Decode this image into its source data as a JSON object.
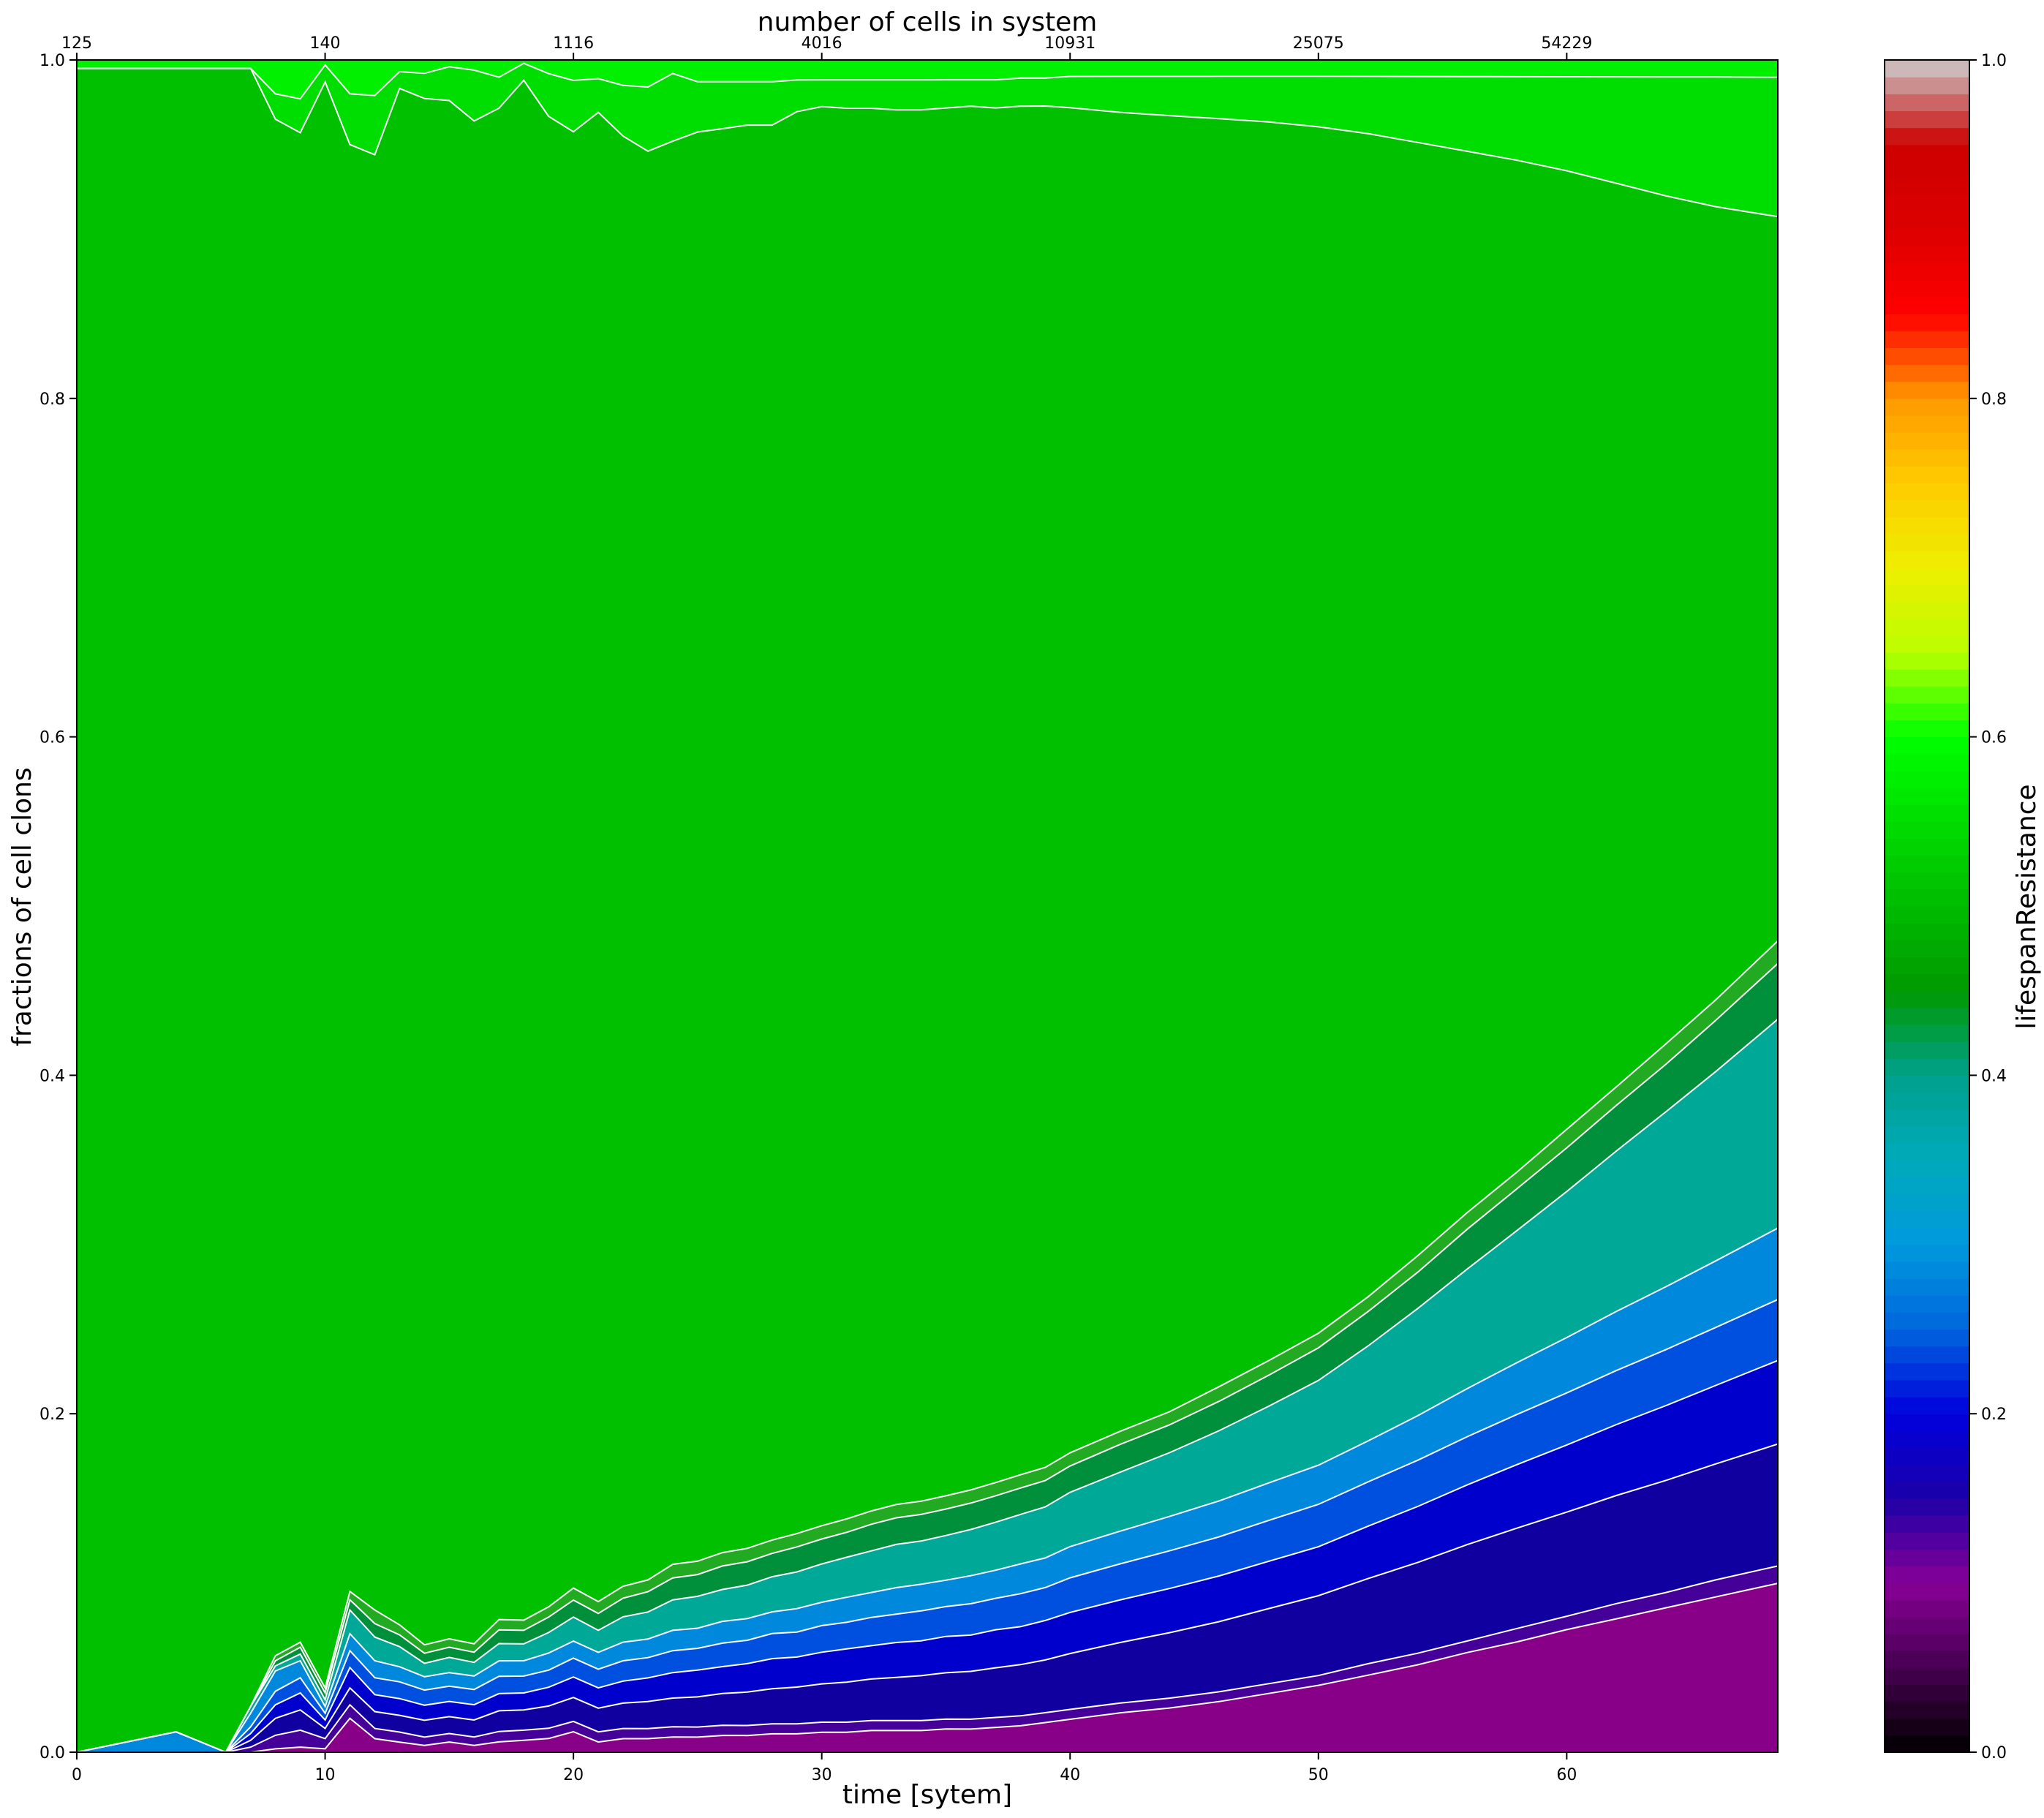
{
  "chart_data": [
    {
      "type": "area",
      "stacked": true,
      "normalized": true,
      "title": "",
      "xlabel": "time [sytem]",
      "ylabel": "fractions of cell clons",
      "xlim": [
        0,
        68.5
      ],
      "ylim": [
        0,
        1
      ],
      "x_ticks": [
        0,
        10,
        20,
        30,
        40,
        50,
        60
      ],
      "y_ticks": [
        0.0,
        0.2,
        0.4,
        0.6,
        0.8,
        1.0
      ],
      "y_tick_labels": [
        "0.0",
        "0.2",
        "0.4",
        "0.6",
        "0.8",
        "1.0"
      ],
      "top_axis": {
        "label": "number of cells in system",
        "ticks": [
          0,
          10,
          20,
          30,
          40,
          50,
          60
        ],
        "tick_labels": [
          "125",
          "140",
          "1116",
          "4016",
          "10931",
          "25075",
          "54229"
        ]
      },
      "grid": false,
      "boundary_line_color": "#ffffff",
      "x": [
        0,
        4,
        6,
        7,
        8,
        9,
        10,
        11,
        12,
        13,
        14,
        15,
        16,
        17,
        18,
        19,
        20,
        21,
        22,
        23,
        24,
        25,
        26,
        27,
        28,
        29,
        30,
        31,
        32,
        33,
        34,
        35,
        36,
        37,
        38,
        39,
        40,
        42,
        44,
        46,
        48,
        50,
        52,
        54,
        56,
        58,
        60,
        62,
        64,
        66,
        68.5
      ],
      "series": [
        {
          "color": "#880088",
          "values": [
            0,
            0,
            0,
            0,
            0.002,
            0.003,
            0.002,
            0.02,
            0.008,
            0.006,
            0.004,
            0.006,
            0.004,
            0.006,
            0.007,
            0.008,
            0.012,
            0.006,
            0.008,
            0.008,
            0.009,
            0.009,
            0.01,
            0.01,
            0.011,
            0.011,
            0.012,
            0.012,
            0.013,
            0.013,
            0.013,
            0.014,
            0.014,
            0.015,
            0.016,
            0.018,
            0.02,
            0.024,
            0.027,
            0.031,
            0.036,
            0.041,
            0.047,
            0.053,
            0.06,
            0.066,
            0.073,
            0.079,
            0.085,
            0.091,
            0.097
          ]
        },
        {
          "color": "#440099",
          "values": [
            0,
            0,
            0,
            0.003,
            0.008,
            0.01,
            0.006,
            0.008,
            0.006,
            0.006,
            0.005,
            0.005,
            0.005,
            0.006,
            0.006,
            0.006,
            0.006,
            0.006,
            0.006,
            0.006,
            0.006,
            0.006,
            0.006,
            0.006,
            0.006,
            0.006,
            0.006,
            0.006,
            0.006,
            0.006,
            0.006,
            0.006,
            0.006,
            0.006,
            0.006,
            0.006,
            0.006,
            0.006,
            0.006,
            0.006,
            0.006,
            0.006,
            0.007,
            0.007,
            0.007,
            0.008,
            0.008,
            0.009,
            0.009,
            0.01,
            0.01
          ]
        },
        {
          "color": "#1100a0",
          "values": [
            0,
            0,
            0,
            0.004,
            0.01,
            0.012,
            0.006,
            0.01,
            0.01,
            0.01,
            0.01,
            0.01,
            0.01,
            0.012,
            0.012,
            0.013,
            0.014,
            0.014,
            0.015,
            0.016,
            0.017,
            0.018,
            0.019,
            0.02,
            0.021,
            0.022,
            0.023,
            0.024,
            0.025,
            0.026,
            0.027,
            0.028,
            0.029,
            0.03,
            0.031,
            0.032,
            0.034,
            0.037,
            0.04,
            0.043,
            0.046,
            0.049,
            0.052,
            0.055,
            0.058,
            0.06,
            0.062,
            0.064,
            0.066,
            0.068,
            0.07
          ]
        },
        {
          "color": "#0000cc",
          "values": [
            0,
            0,
            0,
            0.004,
            0.008,
            0.01,
            0.005,
            0.012,
            0.01,
            0.01,
            0.009,
            0.009,
            0.009,
            0.01,
            0.01,
            0.011,
            0.012,
            0.012,
            0.013,
            0.014,
            0.015,
            0.016,
            0.016,
            0.017,
            0.018,
            0.018,
            0.019,
            0.02,
            0.02,
            0.021,
            0.021,
            0.022,
            0.022,
            0.023,
            0.023,
            0.024,
            0.025,
            0.026,
            0.027,
            0.028,
            0.029,
            0.03,
            0.032,
            0.034,
            0.036,
            0.038,
            0.04,
            0.042,
            0.044,
            0.046,
            0.048
          ]
        },
        {
          "color": "#0050e0",
          "values": [
            0,
            0,
            0,
            0.004,
            0.008,
            0.009,
            0.004,
            0.01,
            0.01,
            0.01,
            0.009,
            0.009,
            0.009,
            0.01,
            0.01,
            0.01,
            0.011,
            0.011,
            0.012,
            0.012,
            0.013,
            0.013,
            0.014,
            0.014,
            0.015,
            0.015,
            0.016,
            0.016,
            0.017,
            0.017,
            0.018,
            0.018,
            0.019,
            0.019,
            0.02,
            0.02,
            0.021,
            0.022,
            0.023,
            0.024,
            0.025,
            0.026,
            0.027,
            0.028,
            0.029,
            0.03,
            0.031,
            0.032,
            0.033,
            0.034,
            0.035
          ]
        },
        {
          "color": "#0088dd",
          "values": [
            0,
            0.012,
            0,
            0.008,
            0.012,
            0.01,
            0.004,
            0.01,
            0.01,
            0.009,
            0.008,
            0.008,
            0.008,
            0.009,
            0.009,
            0.01,
            0.01,
            0.01,
            0.011,
            0.011,
            0.012,
            0.012,
            0.013,
            0.013,
            0.013,
            0.014,
            0.014,
            0.015,
            0.015,
            0.016,
            0.016,
            0.016,
            0.017,
            0.017,
            0.018,
            0.018,
            0.019,
            0.02,
            0.021,
            0.022,
            0.023,
            0.024,
            0.025,
            0.027,
            0.029,
            0.031,
            0.033,
            0.035,
            0.037,
            0.039,
            0.041
          ]
        },
        {
          "color": "#00a898",
          "values": [
            0,
            0,
            0,
            0.004,
            0.003,
            0.004,
            0.004,
            0.014,
            0.014,
            0.012,
            0.008,
            0.009,
            0.008,
            0.01,
            0.01,
            0.012,
            0.014,
            0.013,
            0.015,
            0.016,
            0.018,
            0.019,
            0.019,
            0.02,
            0.021,
            0.022,
            0.023,
            0.024,
            0.025,
            0.026,
            0.026,
            0.027,
            0.028,
            0.029,
            0.03,
            0.031,
            0.033,
            0.036,
            0.039,
            0.043,
            0.047,
            0.052,
            0.058,
            0.065,
            0.072,
            0.079,
            0.087,
            0.095,
            0.103,
            0.111,
            0.12
          ]
        },
        {
          "color": "#008f3a",
          "values": [
            0,
            0,
            0,
            0,
            0.003,
            0.004,
            0.004,
            0.006,
            0.008,
            0.007,
            0.006,
            0.006,
            0.006,
            0.008,
            0.008,
            0.009,
            0.01,
            0.01,
            0.011,
            0.012,
            0.013,
            0.013,
            0.014,
            0.014,
            0.014,
            0.015,
            0.015,
            0.015,
            0.016,
            0.016,
            0.016,
            0.016,
            0.016,
            0.016,
            0.016,
            0.016,
            0.016,
            0.017,
            0.017,
            0.018,
            0.019,
            0.02,
            0.021,
            0.022,
            0.024,
            0.025,
            0.026,
            0.027,
            0.028,
            0.03,
            0.032
          ]
        },
        {
          "color": "#22aa22",
          "values": [
            0,
            0,
            0,
            0,
            0.003,
            0.003,
            0.003,
            0.005,
            0.008,
            0.006,
            0.005,
            0.005,
            0.005,
            0.006,
            0.006,
            0.006,
            0.007,
            0.007,
            0.007,
            0.007,
            0.008,
            0.008,
            0.008,
            0.008,
            0.008,
            0.008,
            0.008,
            0.008,
            0.008,
            0.008,
            0.008,
            0.008,
            0.008,
            0.008,
            0.008,
            0.008,
            0.008,
            0.008,
            0.008,
            0.009,
            0.009,
            0.009,
            0.009,
            0.01,
            0.01,
            0.01,
            0.011,
            0.011,
            0.012,
            0.012,
            0.013
          ]
        },
        {
          "color": "#00c000",
          "values": [
            0.995,
            0.983,
            0.995,
            0.968,
            0.908,
            0.892,
            0.949,
            0.855,
            0.86,
            0.917,
            0.922,
            0.909,
            0.899,
            0.877,
            0.91,
            0.872,
            0.852,
            0.88,
            0.857,
            0.846,
            0.841,
            0.853,
            0.849,
            0.852,
            0.847,
            0.852,
            0.852,
            0.847,
            0.843,
            0.839,
            0.837,
            0.839,
            0.839,
            0.831,
            0.829,
            0.827,
            0.818,
            0.806,
            0.792,
            0.777,
            0.759,
            0.74,
            0.71,
            0.675,
            0.639,
            0.605,
            0.571,
            0.535,
            0.499,
            0.465,
            0.416
          ]
        },
        {
          "color": "#00dd00",
          "values": [
            0,
            0,
            0,
            0,
            0.015,
            0.02,
            0.01,
            0.03,
            0.035,
            0.01,
            0.015,
            0.02,
            0.03,
            0.018,
            0.01,
            0.025,
            0.03,
            0.02,
            0.03,
            0.038,
            0.04,
            0.03,
            0.028,
            0.026,
            0.026,
            0.019,
            0.016,
            0.017,
            0.017,
            0.018,
            0.018,
            0.017,
            0.016,
            0.017,
            0.017,
            0.017,
            0.019,
            0.022,
            0.024,
            0.026,
            0.028,
            0.031,
            0.035,
            0.04,
            0.045,
            0.05,
            0.056,
            0.063,
            0.07,
            0.076,
            0.08
          ]
        },
        {
          "color": "#00f000",
          "values": [
            0.005,
            0.005,
            0.005,
            0.005,
            0.02,
            0.023,
            0.003,
            0.02,
            0.021,
            0.007,
            0.008,
            0.004,
            0.006,
            0.01,
            0.002,
            0.008,
            0.012,
            0.011,
            0.015,
            0.016,
            0.008,
            0.013,
            0.013,
            0.013,
            0.013,
            0.012,
            0.012,
            0.012,
            0.012,
            0.012,
            0.012,
            0.012,
            0.012,
            0.012,
            0.011,
            0.011,
            0.01,
            0.01,
            0.01,
            0.01,
            0.01,
            0.01,
            0.01,
            0.01,
            0.01,
            0.01,
            0.01,
            0.01,
            0.01,
            0.01,
            0.01
          ]
        }
      ]
    },
    {
      "type": "colorbar",
      "label": "lifespanResistance",
      "range": [
        0,
        1
      ],
      "ticks": [
        0.0,
        0.2,
        0.4,
        0.6,
        0.8,
        1.0
      ],
      "tick_labels": [
        "0.0",
        "0.2",
        "0.4",
        "0.6",
        "0.8",
        "1.0"
      ],
      "colormap": "nipy_spectral",
      "levels": 100,
      "color_stops": [
        [
          0.0,
          "#000000"
        ],
        [
          0.05,
          "#470051"
        ],
        [
          0.1,
          "#870096"
        ],
        [
          0.15,
          "#1c00a8"
        ],
        [
          0.2,
          "#0000dd"
        ],
        [
          0.25,
          "#0066dd"
        ],
        [
          0.3,
          "#0099dd"
        ],
        [
          0.35,
          "#00aabb"
        ],
        [
          0.4,
          "#00a08c"
        ],
        [
          0.45,
          "#009900"
        ],
        [
          0.5,
          "#00bb00"
        ],
        [
          0.55,
          "#00dd00"
        ],
        [
          0.6,
          "#00ff00"
        ],
        [
          0.65,
          "#bbff00"
        ],
        [
          0.7,
          "#eeee00"
        ],
        [
          0.75,
          "#ffcc00"
        ],
        [
          0.8,
          "#ff9900"
        ],
        [
          0.85,
          "#ff0000"
        ],
        [
          0.9,
          "#dd0000"
        ],
        [
          0.95,
          "#cc0000"
        ],
        [
          1.0,
          "#cccccc"
        ]
      ]
    }
  ]
}
